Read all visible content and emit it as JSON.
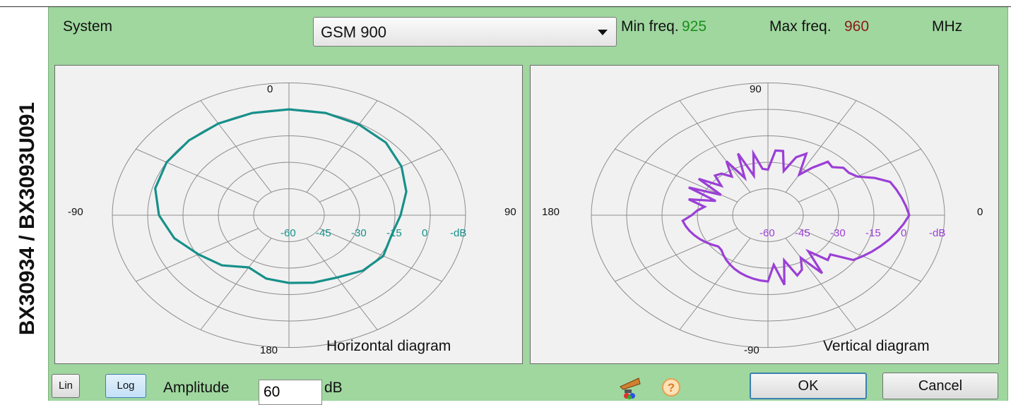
{
  "side_title": "BX30934 / BX3093U091",
  "header": {
    "system_label": "System",
    "system_value": "GSM 900",
    "min_freq_label": "Min freq.",
    "min_freq_value": "925",
    "max_freq_label": "Max freq.",
    "max_freq_value": "960",
    "unit_label": "MHz"
  },
  "colors": {
    "panel_bg": "#9fd79f",
    "min_freq": "#1a8f1a",
    "max_freq": "#8b1a1a",
    "horizontal_trace": "#17908a",
    "vertical_trace": "#9b3fd6"
  },
  "horizontal": {
    "title": "Horizontal diagram",
    "top_label": "0",
    "left_label": "-90",
    "right_label": "90",
    "bottom_label": "180",
    "ring_labels": [
      "-60",
      "-45",
      "-30",
      "-15",
      "0",
      "-dB"
    ]
  },
  "vertical": {
    "title": "Vertical diagram",
    "top_label": "90",
    "left_label": "180",
    "right_label": "0",
    "bottom_label": "-90",
    "ring_labels": [
      "-60",
      "-45",
      "-30",
      "-15",
      "0",
      "-dB"
    ]
  },
  "footer": {
    "lin_label": "Lin",
    "log_label": "Log",
    "amplitude_label": "Amplitude",
    "amplitude_value": "60",
    "amplitude_unit": "dB",
    "ok_label": "OK",
    "cancel_label": "Cancel",
    "help_glyph": "?"
  },
  "icons": [
    "antenna-icon",
    "help-icon",
    "dropdown-arrow-icon"
  ]
}
